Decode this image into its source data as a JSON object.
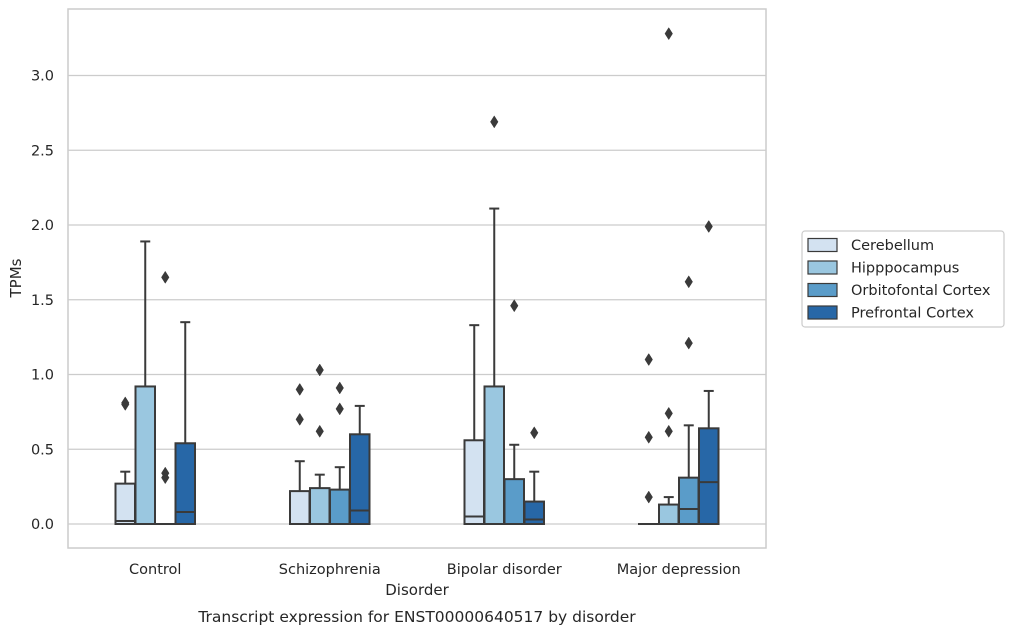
{
  "chart_data": {
    "type": "box",
    "title": "",
    "caption": "Transcript expression for ENST00000640517 by disorder",
    "xlabel": "Disorder",
    "ylabel": "TPMs",
    "ylim": [
      -0.16,
      3.45
    ],
    "yticks": [
      0.0,
      0.5,
      1.0,
      1.5,
      2.0,
      2.5,
      3.0
    ],
    "ytick_labels": [
      "0.0",
      "0.5",
      "1.0",
      "1.5",
      "2.0",
      "2.5",
      "3.0"
    ],
    "grid": "horizontal",
    "legend_position": "outside-right",
    "categories": [
      "Control",
      "Schizophrenia",
      "Bipolar disorder",
      "Major depression"
    ],
    "series": [
      {
        "name": "Cerebellum",
        "color": "#d3e2f1",
        "boxes": [
          {
            "low": 0.0,
            "q1": 0.0,
            "median": 0.02,
            "q3": 0.27,
            "high": 0.35,
            "outliers": [
              0.81,
              0.8
            ]
          },
          {
            "low": 0.0,
            "q1": 0.0,
            "median": 0.0,
            "q3": 0.22,
            "high": 0.42,
            "outliers": [
              0.9,
              0.7
            ]
          },
          {
            "low": 0.0,
            "q1": 0.0,
            "median": 0.05,
            "q3": 0.56,
            "high": 1.33,
            "outliers": []
          },
          {
            "low": 0.0,
            "q1": 0.0,
            "median": 0.0,
            "q3": 0.0,
            "high": 0.0,
            "outliers": [
              1.1,
              0.58,
              0.18
            ]
          }
        ]
      },
      {
        "name": "Hipppocampus",
        "color": "#9ac7e0",
        "boxes": [
          {
            "low": 0.0,
            "q1": 0.0,
            "median": 0.0,
            "q3": 0.92,
            "high": 1.89,
            "outliers": []
          },
          {
            "low": 0.0,
            "q1": 0.0,
            "median": 0.0,
            "q3": 0.24,
            "high": 0.33,
            "outliers": [
              1.03,
              0.62
            ]
          },
          {
            "low": 0.0,
            "q1": 0.0,
            "median": 0.0,
            "q3": 0.92,
            "high": 2.11,
            "outliers": [
              2.69
            ]
          },
          {
            "low": 0.0,
            "q1": 0.0,
            "median": 0.0,
            "q3": 0.13,
            "high": 0.18,
            "outliers": [
              3.28,
              0.74,
              0.62
            ]
          }
        ]
      },
      {
        "name": "Orbitofontal Cortex",
        "color": "#5a9cc9",
        "boxes": [
          {
            "low": 0.0,
            "q1": 0.0,
            "median": 0.0,
            "q3": 0.0,
            "high": 0.0,
            "outliers": [
              1.65,
              0.34,
              0.31
            ]
          },
          {
            "low": 0.0,
            "q1": 0.0,
            "median": 0.0,
            "q3": 0.23,
            "high": 0.38,
            "outliers": [
              0.91,
              0.77
            ]
          },
          {
            "low": 0.0,
            "q1": 0.0,
            "median": 0.0,
            "q3": 0.3,
            "high": 0.53,
            "outliers": [
              1.46
            ]
          },
          {
            "low": 0.0,
            "q1": 0.0,
            "median": 0.1,
            "q3": 0.31,
            "high": 0.66,
            "outliers": [
              1.62,
              1.21
            ]
          }
        ]
      },
      {
        "name": "Prefrontal Cortex",
        "color": "#2767a7",
        "boxes": [
          {
            "low": 0.0,
            "q1": 0.0,
            "median": 0.08,
            "q3": 0.54,
            "high": 1.35,
            "outliers": []
          },
          {
            "low": 0.0,
            "q1": 0.0,
            "median": 0.09,
            "q3": 0.6,
            "high": 0.79,
            "outliers": []
          },
          {
            "low": 0.0,
            "q1": 0.0,
            "median": 0.03,
            "q3": 0.15,
            "high": 0.35,
            "outliers": [
              0.61
            ]
          },
          {
            "low": 0.0,
            "q1": 0.0,
            "median": 0.28,
            "q3": 0.64,
            "high": 0.89,
            "outliers": [
              1.99
            ]
          }
        ]
      }
    ]
  }
}
